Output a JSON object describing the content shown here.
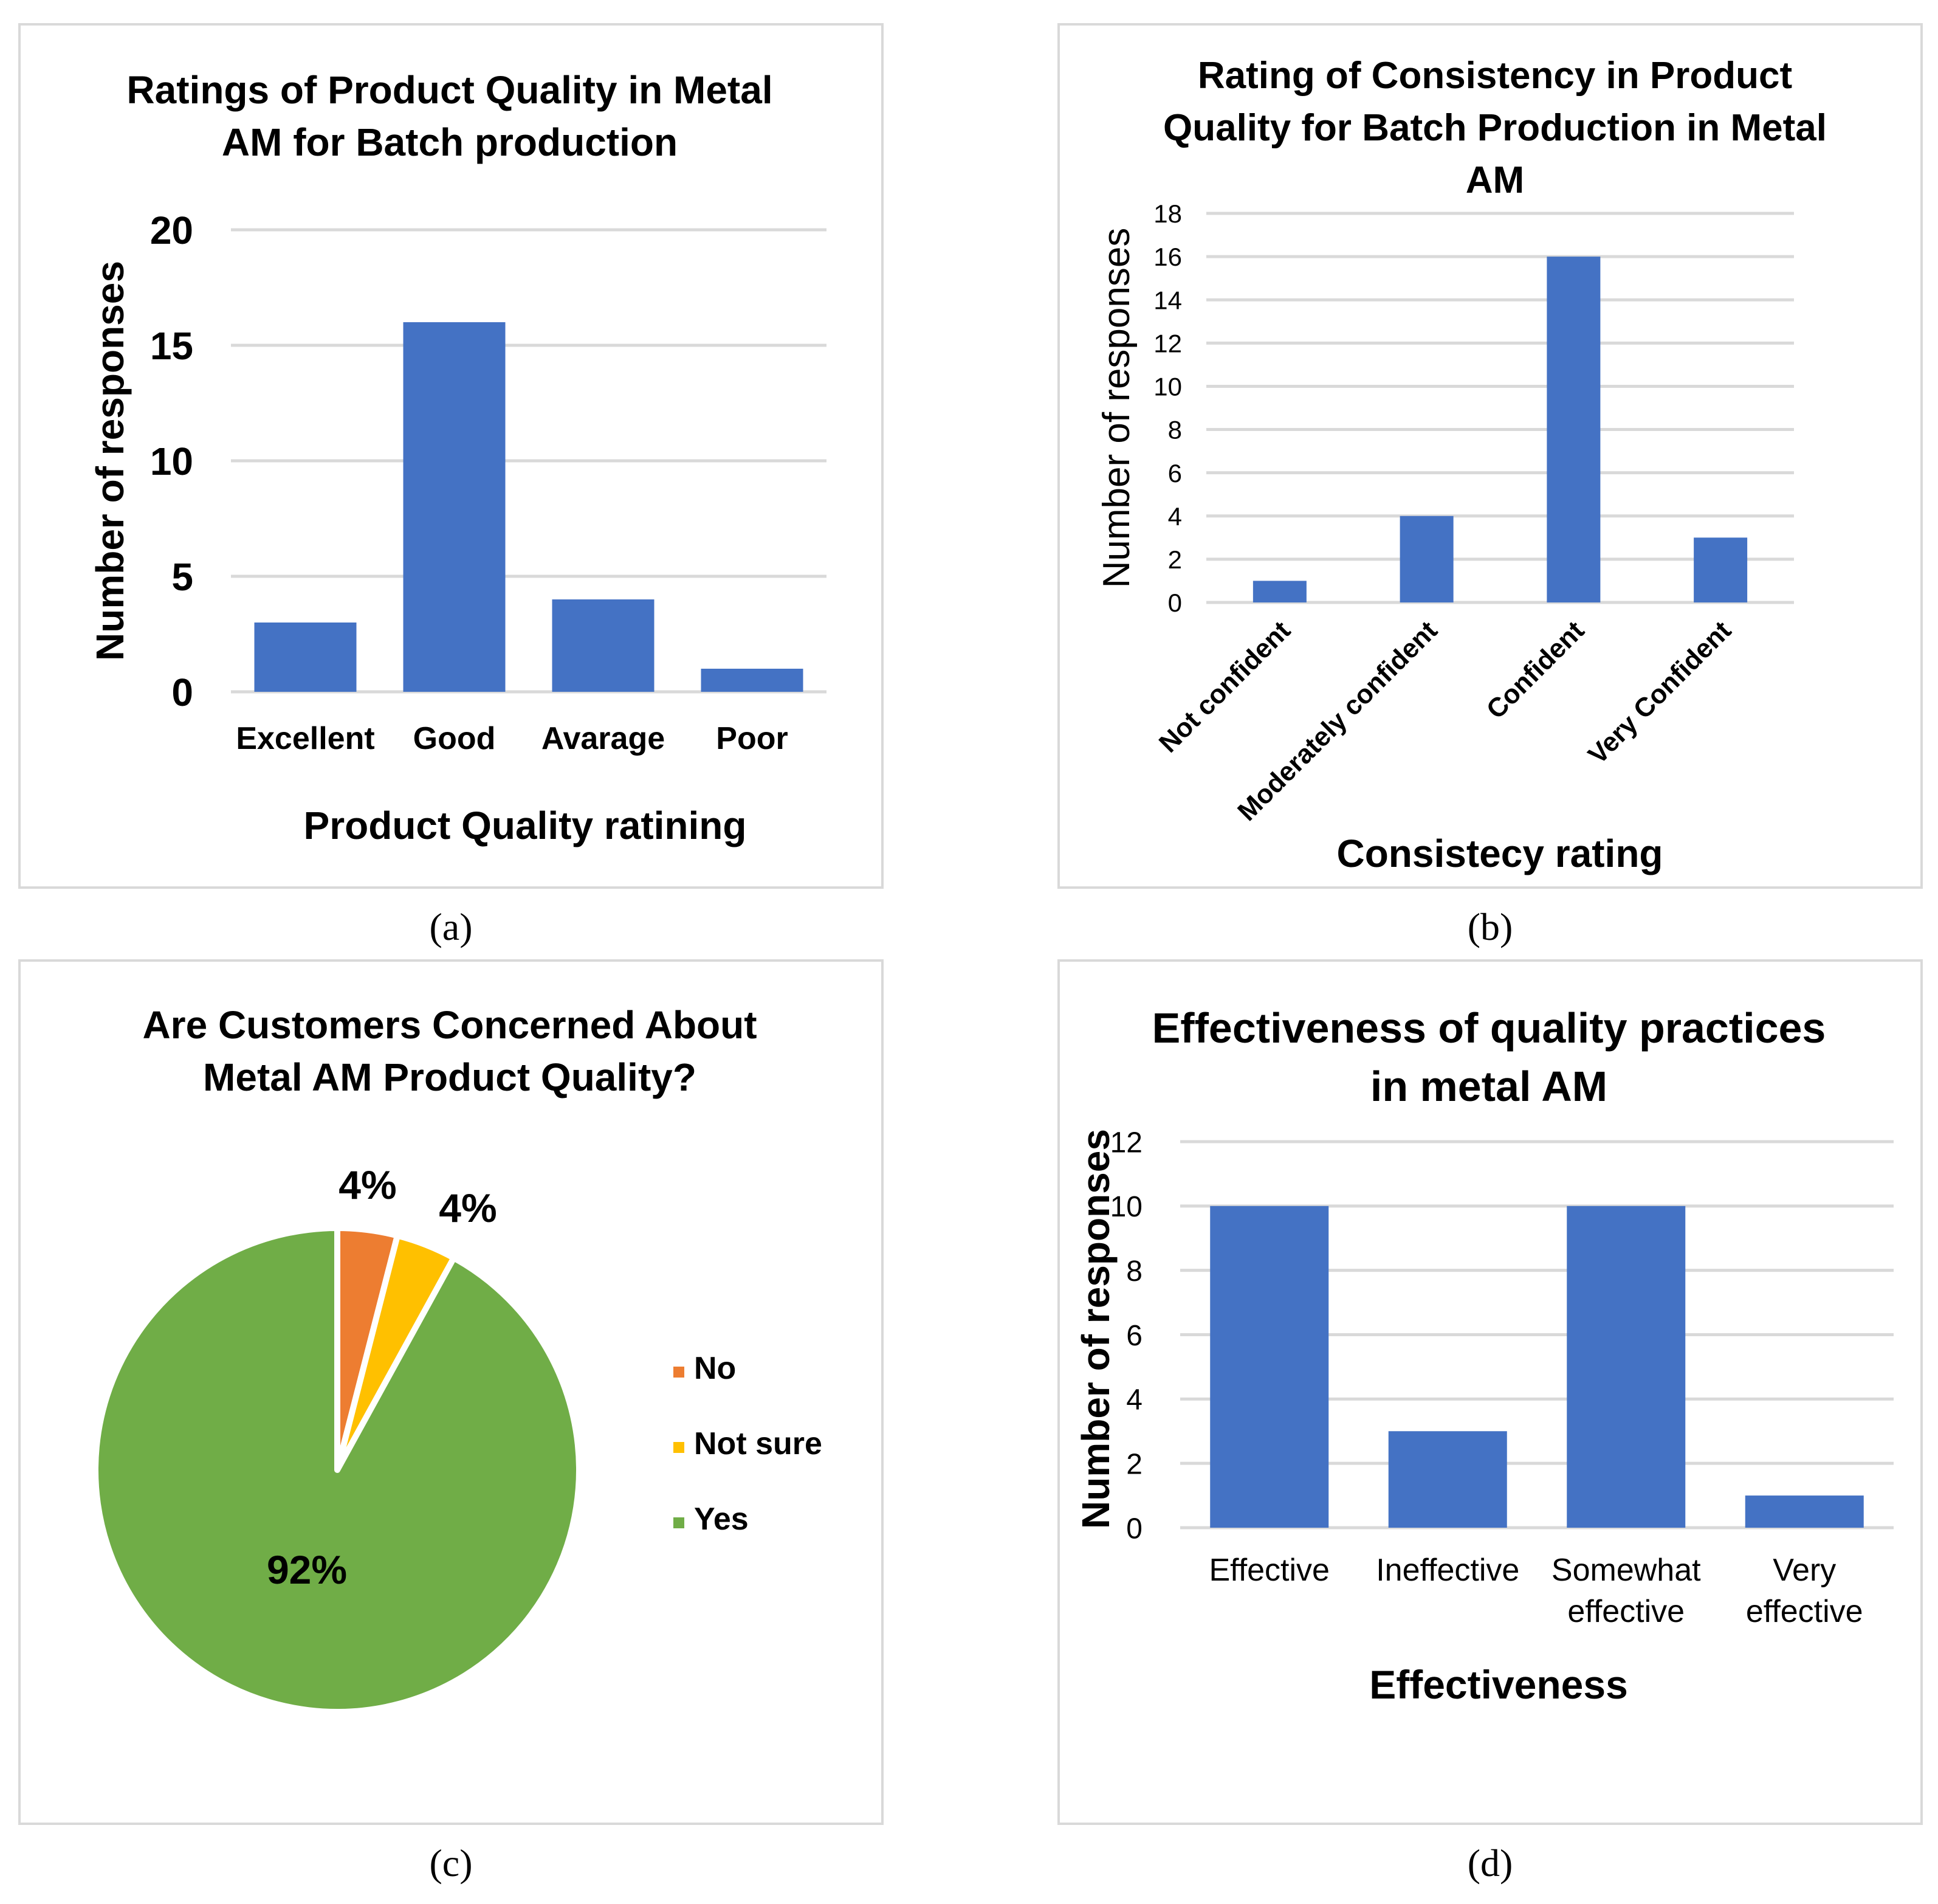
{
  "captions": [
    "(a)",
    "(b)",
    "(c)",
    "(d)"
  ],
  "colors": {
    "bar": "#4472c4",
    "grid": "#d9d9d9",
    "panel_border": "#d9d9d9",
    "pie_no": "#ed7d31",
    "pie_not_sure": "#ffc000",
    "pie_yes": "#70ad47"
  },
  "chart_data": [
    {
      "type": "bar",
      "title_lines": [
        "Ratings of Product Quality in Metal",
        "AM for Batch production"
      ],
      "xlabel": "Product Quality ratining",
      "ylabel": "Number of responses",
      "categories": [
        "Excellent",
        "Good",
        "Avarage",
        "Poor"
      ],
      "values": [
        3,
        16,
        4,
        1
      ],
      "ylim": [
        0,
        20
      ],
      "yticks": [
        0,
        5,
        10,
        15,
        20
      ],
      "grid": true
    },
    {
      "type": "bar",
      "title_lines": [
        "Rating of Consistency in Product",
        "Quality for Batch Production in Metal",
        "AM"
      ],
      "xlabel": "Consistecy rating",
      "ylabel": "Number of responses",
      "categories": [
        "Not confident",
        "Moderately confident",
        "Confident",
        "Very Confident"
      ],
      "values": [
        1,
        4,
        16,
        3
      ],
      "ylim": [
        0,
        18
      ],
      "yticks": [
        0,
        2,
        4,
        6,
        8,
        10,
        12,
        14,
        16,
        18
      ],
      "grid": true
    },
    {
      "type": "pie",
      "title_lines": [
        "Are Customers Concerned About",
        "Metal AM Product Quality?"
      ],
      "categories": [
        "No",
        "Not sure",
        "Yes"
      ],
      "values": [
        4,
        4,
        92
      ],
      "data_labels": [
        "4%",
        "4%",
        "92%"
      ],
      "legend_position": "right"
    },
    {
      "type": "bar",
      "title_lines": [
        "Effectiveness of quality practices",
        "in metal AM"
      ],
      "xlabel": "Effectiveness",
      "ylabel": "Number of responses",
      "categories": [
        "Effective",
        "Ineffective",
        "Somewhat effective",
        "Very effective"
      ],
      "category_lines": [
        [
          "Effective"
        ],
        [
          "Ineffective"
        ],
        [
          "Somewhat",
          "effective"
        ],
        [
          "Very",
          "effective"
        ]
      ],
      "values": [
        10,
        3,
        10,
        1
      ],
      "ylim": [
        0,
        12
      ],
      "yticks": [
        0,
        2,
        4,
        6,
        8,
        10,
        12
      ],
      "grid": true
    }
  ]
}
